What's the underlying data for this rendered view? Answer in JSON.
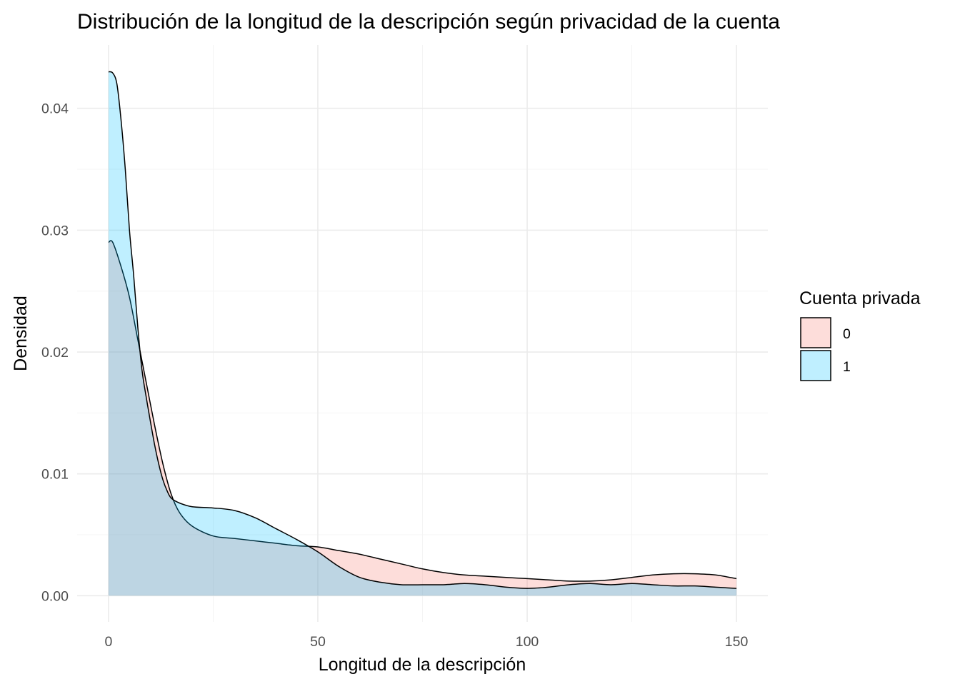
{
  "chart_data": {
    "type": "area",
    "title": "Distribución de la longitud de la descripción según privacidad de la cuenta",
    "xlabel": "Longitud de la descripción",
    "ylabel": "Densidad",
    "xlim": [
      -7.5,
      157.5
    ],
    "ylim": [
      -0.00215,
      0.0452
    ],
    "x_ticks": [
      0,
      50,
      100,
      150
    ],
    "x_tick_labels": [
      "0",
      "50",
      "100",
      "150"
    ],
    "y_ticks": [
      0,
      0.01,
      0.02,
      0.03,
      0.04
    ],
    "y_tick_labels": [
      "0.00",
      "0.01",
      "0.02",
      "0.03",
      "0.04"
    ],
    "grid": true,
    "legend": {
      "title": "Cuenta privada",
      "position": "right"
    },
    "series": [
      {
        "name": "0",
        "color": "#F8766D",
        "x": [
          0,
          1,
          3,
          5,
          7,
          9,
          11,
          13,
          15,
          17,
          20,
          25,
          30,
          35,
          40,
          45,
          50,
          55,
          60,
          65,
          70,
          75,
          80,
          85,
          90,
          95,
          100,
          105,
          110,
          115,
          120,
          125,
          130,
          135,
          140,
          145,
          150
        ],
        "values": [
          0.029,
          0.029,
          0.027,
          0.0245,
          0.021,
          0.0175,
          0.014,
          0.0108,
          0.0083,
          0.0068,
          0.0057,
          0.0049,
          0.0047,
          0.0045,
          0.0043,
          0.0041,
          0.004,
          0.0037,
          0.0034,
          0.003,
          0.0026,
          0.0022,
          0.0019,
          0.0017,
          0.0016,
          0.0015,
          0.0014,
          0.0013,
          0.0012,
          0.0012,
          0.0013,
          0.0015,
          0.0017,
          0.0018,
          0.0018,
          0.0017,
          0.0014
        ]
      },
      {
        "name": "1",
        "color": "#00BFFF",
        "x": [
          0,
          1,
          2,
          3,
          4,
          5,
          6,
          7,
          8,
          9,
          10,
          11,
          12,
          13,
          14,
          15,
          17,
          20,
          25,
          30,
          35,
          40,
          45,
          50,
          55,
          60,
          65,
          70,
          75,
          80,
          85,
          90,
          95,
          100,
          105,
          110,
          115,
          120,
          125,
          130,
          135,
          140,
          145,
          150
        ],
        "values": [
          0.043,
          0.0429,
          0.042,
          0.039,
          0.035,
          0.03,
          0.0263,
          0.022,
          0.0185,
          0.0163,
          0.0143,
          0.0124,
          0.0108,
          0.0095,
          0.0086,
          0.008,
          0.0076,
          0.0073,
          0.0072,
          0.007,
          0.0064,
          0.0055,
          0.0046,
          0.0036,
          0.0024,
          0.0015,
          0.0011,
          0.0009,
          0.0009,
          0.0009,
          0.001,
          0.0009,
          0.0007,
          0.0006,
          0.0007,
          0.0009,
          0.001,
          0.0009,
          0.001,
          0.0009,
          0.0008,
          0.0008,
          0.0007,
          0.0006
        ]
      }
    ]
  }
}
